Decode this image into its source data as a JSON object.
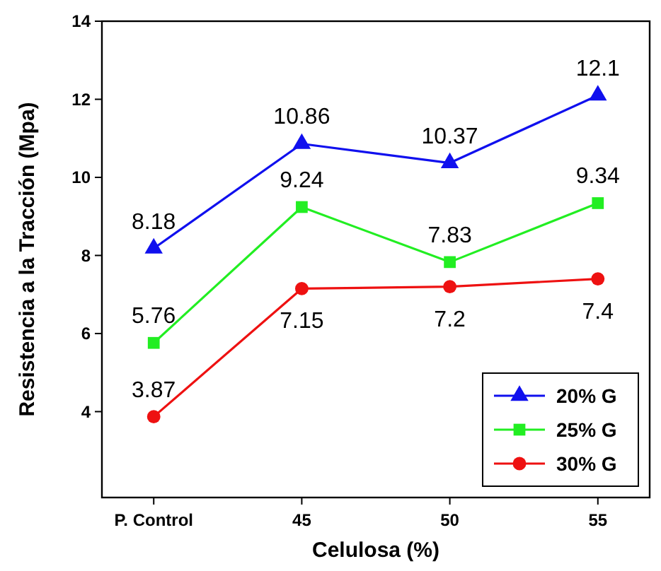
{
  "chart_data": {
    "type": "line",
    "xlabel": "Celulosa (%)",
    "ylabel": "Resistencia a la Tracción (Mpa)",
    "categories": [
      "P. Control",
      "45",
      "50",
      "55"
    ],
    "series": [
      {
        "name": "20% G",
        "color": "#1010ee",
        "values": [
          8.18,
          10.86,
          10.37,
          12.1
        ],
        "marker": "triangle"
      },
      {
        "name": "25% G",
        "color": "#22ee22",
        "values": [
          5.76,
          9.24,
          7.83,
          9.34
        ],
        "marker": "square"
      },
      {
        "name": "30% G",
        "color": "#ee1111",
        "values": [
          3.87,
          7.15,
          7.2,
          7.4
        ],
        "marker": "circle"
      }
    ],
    "ylim": [
      1.8,
      14
    ],
    "yticks": [
      4,
      6,
      8,
      10,
      12,
      14
    ],
    "data_labels": true,
    "legend": "bottom right",
    "grid": false
  }
}
